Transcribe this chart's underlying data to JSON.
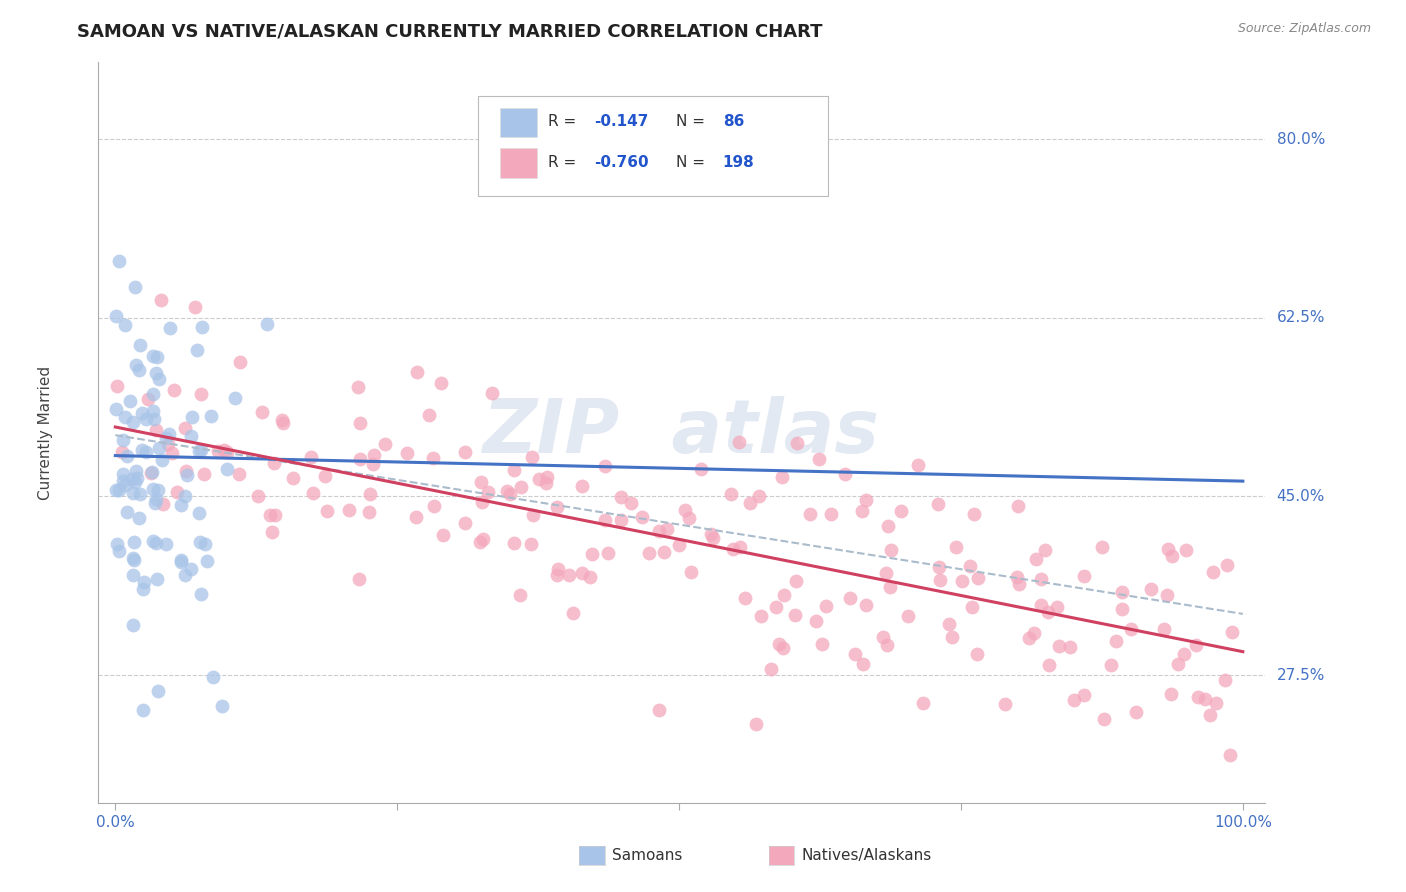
{
  "title": "SAMOAN VS NATIVE/ALASKAN CURRENTLY MARRIED CORRELATION CHART",
  "source_text": "Source: ZipAtlas.com",
  "ylabel": "Currently Married",
  "yticks": [
    0.275,
    0.45,
    0.625,
    0.8
  ],
  "ytick_labels": [
    "27.5%",
    "45.0%",
    "62.5%",
    "80.0%"
  ],
  "samoan_color": "#a8c4e8",
  "native_color": "#f4a8bc",
  "samoan_trend_color": "#4472c4",
  "native_trend_color": "#d04060",
  "conf_line_color": "#aabbcc",
  "background_color": "#ffffff",
  "watermark_color": "#ccd8e8",
  "r_samoan": -0.147,
  "n_samoan": 86,
  "r_native": -0.76,
  "n_native": 198,
  "samoan_intercept": 0.49,
  "samoan_slope": -0.025,
  "native_intercept": 0.518,
  "native_slope": -0.22,
  "conf_intercept": 0.51,
  "conf_slope": -0.175,
  "ylim": [
    0.15,
    0.875
  ],
  "xlim": [
    -0.015,
    1.02
  ]
}
